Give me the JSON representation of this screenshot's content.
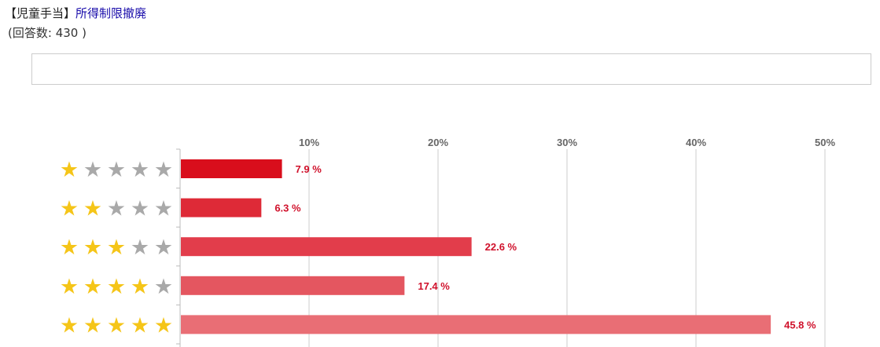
{
  "header": {
    "category": "【児童手当】",
    "title": "所得制限撤廃"
  },
  "responses": {
    "label": "(回答数: ",
    "value": "430",
    "suffix": " )"
  },
  "chart_data": {
    "type": "bar",
    "orientation": "horizontal",
    "categories": [
      "1 star",
      "2 stars",
      "3 stars",
      "4 stars",
      "5 stars"
    ],
    "star_counts": [
      1,
      2,
      3,
      4,
      5
    ],
    "values": [
      7.9,
      6.3,
      22.6,
      17.4,
      45.8
    ],
    "value_labels": [
      "7.9 %",
      "6.3 %",
      "22.6 %",
      "17.4 %",
      "45.8 %"
    ],
    "x_ticks": [
      10,
      20,
      30,
      40,
      50
    ],
    "x_tick_labels": [
      "10%",
      "20%",
      "30%",
      "40%",
      "50%"
    ],
    "xlim": [
      0,
      50
    ],
    "grid": true,
    "bar_colors": [
      "#d90e1c",
      "#de2a37",
      "#e23d4b",
      "#e45660",
      "#e96e75"
    ],
    "star_filled_color": "#f5c518",
    "star_empty_color": "#a9a9a9",
    "value_label_color": "#d0112b"
  }
}
